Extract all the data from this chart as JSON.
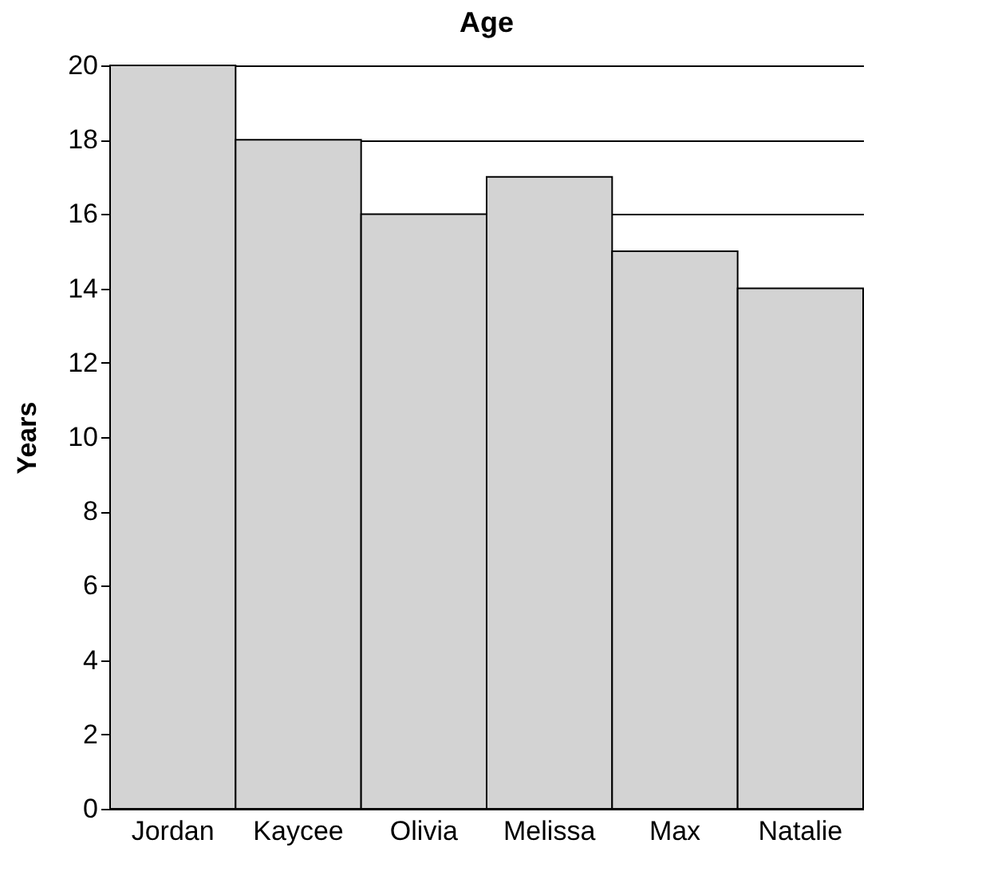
{
  "chart_data": {
    "type": "bar",
    "title": "Age",
    "ylabel": "Years",
    "categories": [
      "Jordan",
      "Kaycee",
      "Olivia",
      "Melissa",
      "Max",
      "Natalie"
    ],
    "values": [
      20,
      18,
      16,
      17,
      15,
      14
    ],
    "color": "#d3d3d3",
    "ylim": [
      0,
      20
    ],
    "yticks": [
      0,
      2,
      4,
      6,
      8,
      10,
      12,
      14,
      16,
      18,
      20
    ],
    "grid": "y"
  }
}
